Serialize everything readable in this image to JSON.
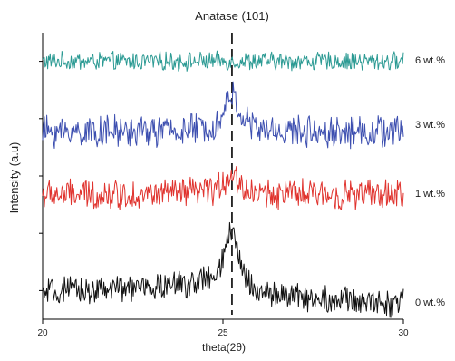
{
  "chart_data": {
    "type": "line",
    "title": "Anatase (101)",
    "xlabel": "theta(2θ)",
    "ylabel": "Intensity (a.u)",
    "xlim": [
      20,
      30
    ],
    "xticks": [
      "20",
      "25",
      "30"
    ],
    "grid": false,
    "legend": "none",
    "annotation": {
      "type": "dashed-vertical-line",
      "x": 25.25
    },
    "series": [
      {
        "name": "6 wt.%",
        "color": "#2b9a93",
        "baseline": 9.0,
        "x": [
          20,
          21,
          22,
          23,
          24,
          25,
          25.25,
          26,
          27,
          28,
          29,
          30
        ],
        "values": [
          9.0,
          9.0,
          9.0,
          9.0,
          9.0,
          9.0,
          9.0,
          9.0,
          9.0,
          9.0,
          9.0,
          9.0
        ]
      },
      {
        "name": "3 wt.%",
        "color": "#3d4fb0",
        "baseline": 6.55,
        "x": [
          20,
          21,
          22,
          23,
          24,
          24.8,
          25.0,
          25.2,
          25.4,
          25.6,
          25.8,
          26,
          27,
          28,
          29,
          30
        ],
        "values": [
          6.55,
          6.55,
          6.55,
          6.55,
          6.6,
          6.75,
          7.1,
          7.95,
          7.45,
          6.95,
          6.75,
          6.6,
          6.55,
          6.55,
          6.55,
          6.55
        ]
      },
      {
        "name": "1 wt.%",
        "color": "#e0332e",
        "baseline": 4.35,
        "x": [
          20,
          21,
          22,
          23,
          24,
          24.8,
          25.0,
          25.2,
          25.4,
          25.6,
          25.8,
          26,
          27,
          28,
          29,
          30
        ],
        "values": [
          4.35,
          4.35,
          4.35,
          4.35,
          4.4,
          4.5,
          4.75,
          5.1,
          4.85,
          4.55,
          4.45,
          4.4,
          4.35,
          4.35,
          4.35,
          4.35
        ]
      },
      {
        "name": "0 wt.%",
        "color": "#111111",
        "baseline": 0.6,
        "x": [
          20,
          21,
          22,
          23,
          24,
          24.8,
          25.0,
          25.2,
          25.4,
          25.6,
          25.8,
          26,
          27,
          28,
          29,
          30
        ],
        "values": [
          0.9,
          1.0,
          1.05,
          1.1,
          1.25,
          1.45,
          2.0,
          3.15,
          2.4,
          1.55,
          1.2,
          0.95,
          0.8,
          0.7,
          0.6,
          0.55
        ]
      }
    ]
  }
}
